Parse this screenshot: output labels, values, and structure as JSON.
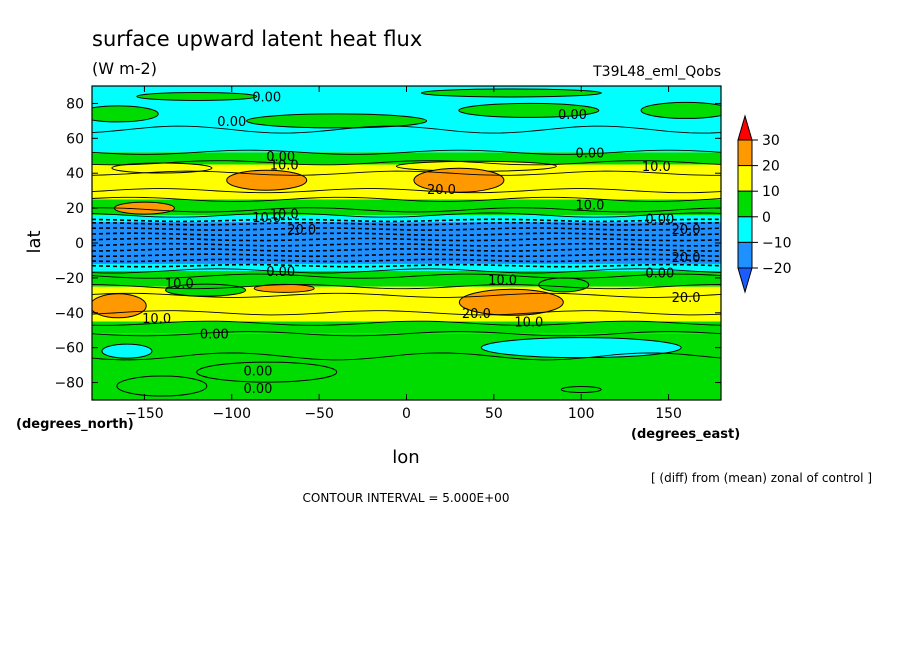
{
  "header": {
    "title": "surface upward latent heat flux",
    "units": "(W m-2)",
    "run_name": "T39L48_eml_Qobs"
  },
  "footer": {
    "diff_note": "[ (diff) from (mean) zonal of control ]",
    "contour_interval": "CONTOUR INTERVAL = 5.000E+00"
  },
  "chart_data": {
    "type": "heatmap",
    "xlabel": "lon",
    "ylabel": "lat",
    "x_units": "(degrees_east)",
    "y_units": "(degrees_north)",
    "xlim": [
      -180,
      180
    ],
    "ylim": [
      -90,
      90
    ],
    "x_ticks": [
      -150,
      -100,
      -50,
      0,
      50,
      100,
      150
    ],
    "y_ticks": [
      -80,
      -60,
      -40,
      -20,
      0,
      20,
      40,
      60,
      80
    ],
    "x_tick_labels": [
      "−150",
      "−100",
      "−50",
      "0",
      "50",
      "100",
      "150"
    ],
    "y_tick_labels": [
      "−80",
      "−60",
      "−40",
      "−20",
      "0",
      "20",
      "40",
      "60",
      "80"
    ],
    "colorbar": {
      "levels": [
        -20,
        -10,
        0,
        10,
        20,
        30
      ],
      "level_labels": [
        "−20",
        "−10",
        "0",
        "10",
        "20",
        "30"
      ],
      "colors": {
        "below_min": "#1a5cff",
        "n20_n10": "#1e90ff",
        "n10_0": "#00ffff",
        "0_10": "#00dc00",
        "10_20": "#ffff00",
        "20_30": "#ff9900",
        "above_max": "#ff0000"
      }
    },
    "zonal_bands": [
      {
        "lat_from": -90,
        "lat_to": -52,
        "range": "0 to 10"
      },
      {
        "lat_from": -52,
        "lat_to": -45,
        "range": "0 to 10"
      },
      {
        "lat_from": -45,
        "lat_to": -25,
        "range": "10 to 20"
      },
      {
        "lat_from": -25,
        "lat_to": -16,
        "range": "0 to 10"
      },
      {
        "lat_from": -16,
        "lat_to": -12,
        "range": "-10 to 0"
      },
      {
        "lat_from": -12,
        "lat_to": 12,
        "range": "-20 to -10"
      },
      {
        "lat_from": 12,
        "lat_to": 16,
        "range": "-10 to 0"
      },
      {
        "lat_from": 16,
        "lat_to": 25,
        "range": "0 to 10"
      },
      {
        "lat_from": 25,
        "lat_to": 45,
        "range": "10 to 20"
      },
      {
        "lat_from": 45,
        "lat_to": 52,
        "range": "0 to 10"
      },
      {
        "lat_from": 52,
        "lat_to": 90,
        "range": "-10 to 0"
      }
    ],
    "contour_labels": [
      {
        "text": "0.00",
        "lon": -80,
        "lat": 84
      },
      {
        "text": "0.00",
        "lon": -100,
        "lat": 70
      },
      {
        "text": "0.00",
        "lon": 95,
        "lat": 74
      },
      {
        "text": "0.00",
        "lon": 105,
        "lat": 52
      },
      {
        "text": "0.00",
        "lon": -72,
        "lat": 50
      },
      {
        "text": "10.0",
        "lon": -70,
        "lat": 45
      },
      {
        "text": "10.0",
        "lon": 143,
        "lat": 44
      },
      {
        "text": "20.0",
        "lon": 20,
        "lat": 31
      },
      {
        "text": "10.0",
        "lon": 105,
        "lat": 22
      },
      {
        "text": "10.0",
        "lon": -70,
        "lat": 17
      },
      {
        "text": "0.00",
        "lon": 145,
        "lat": 14
      },
      {
        "text": "0.00",
        "lon": -72,
        "lat": -16
      },
      {
        "text": "0.00",
        "lon": 145,
        "lat": -17
      },
      {
        "text": "10.0",
        "lon": -130,
        "lat": -23
      },
      {
        "text": "10.0",
        "lon": 55,
        "lat": -21
      },
      {
        "text": "20.0",
        "lon": 160,
        "lat": -31
      },
      {
        "text": "20.0",
        "lon": 40,
        "lat": -40
      },
      {
        "text": "10.0",
        "lon": -143,
        "lat": -43
      },
      {
        "text": "10.0",
        "lon": 70,
        "lat": -45
      },
      {
        "text": "0.00",
        "lon": -110,
        "lat": -52
      },
      {
        "text": "0.00",
        "lon": -85,
        "lat": -73
      },
      {
        "text": "0.00",
        "lon": -85,
        "lat": -83
      },
      {
        "text": "10.0",
        "lon": -80,
        "lat": 15
      },
      {
        "text": "20.0",
        "lon": -60,
        "lat": 8
      },
      {
        "text": "20.0",
        "lon": 160,
        "lat": 8
      },
      {
        "text": "20.0",
        "lon": 160,
        "lat": -8
      }
    ]
  }
}
